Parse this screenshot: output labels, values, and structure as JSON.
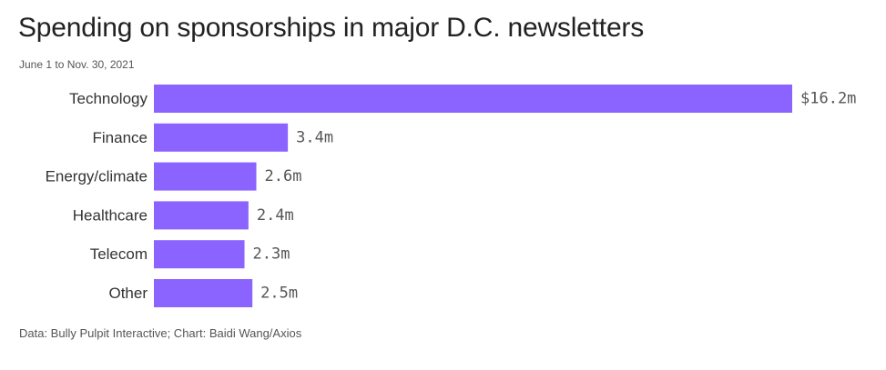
{
  "chart_data": {
    "type": "bar",
    "orientation": "horizontal",
    "title": "Spending on sponsorships in major D.C. newsletters",
    "subtitle": "June 1 to Nov. 30, 2021",
    "categories": [
      "Technology",
      "Finance",
      "Energy/climate",
      "Healthcare",
      "Telecom",
      "Other"
    ],
    "values": [
      16.2,
      3.4,
      2.6,
      2.4,
      2.3,
      2.5
    ],
    "value_labels": [
      "$16.2m",
      "3.4m",
      "2.6m",
      "2.4m",
      "2.3m",
      "2.5m"
    ],
    "unit": "millions of dollars",
    "xlim": [
      0,
      16.2
    ],
    "grid": false,
    "bar_color": "#8b63ff",
    "source": "Data: Bully Pulpit Interactive; Chart: Baidi Wang/Axios"
  }
}
